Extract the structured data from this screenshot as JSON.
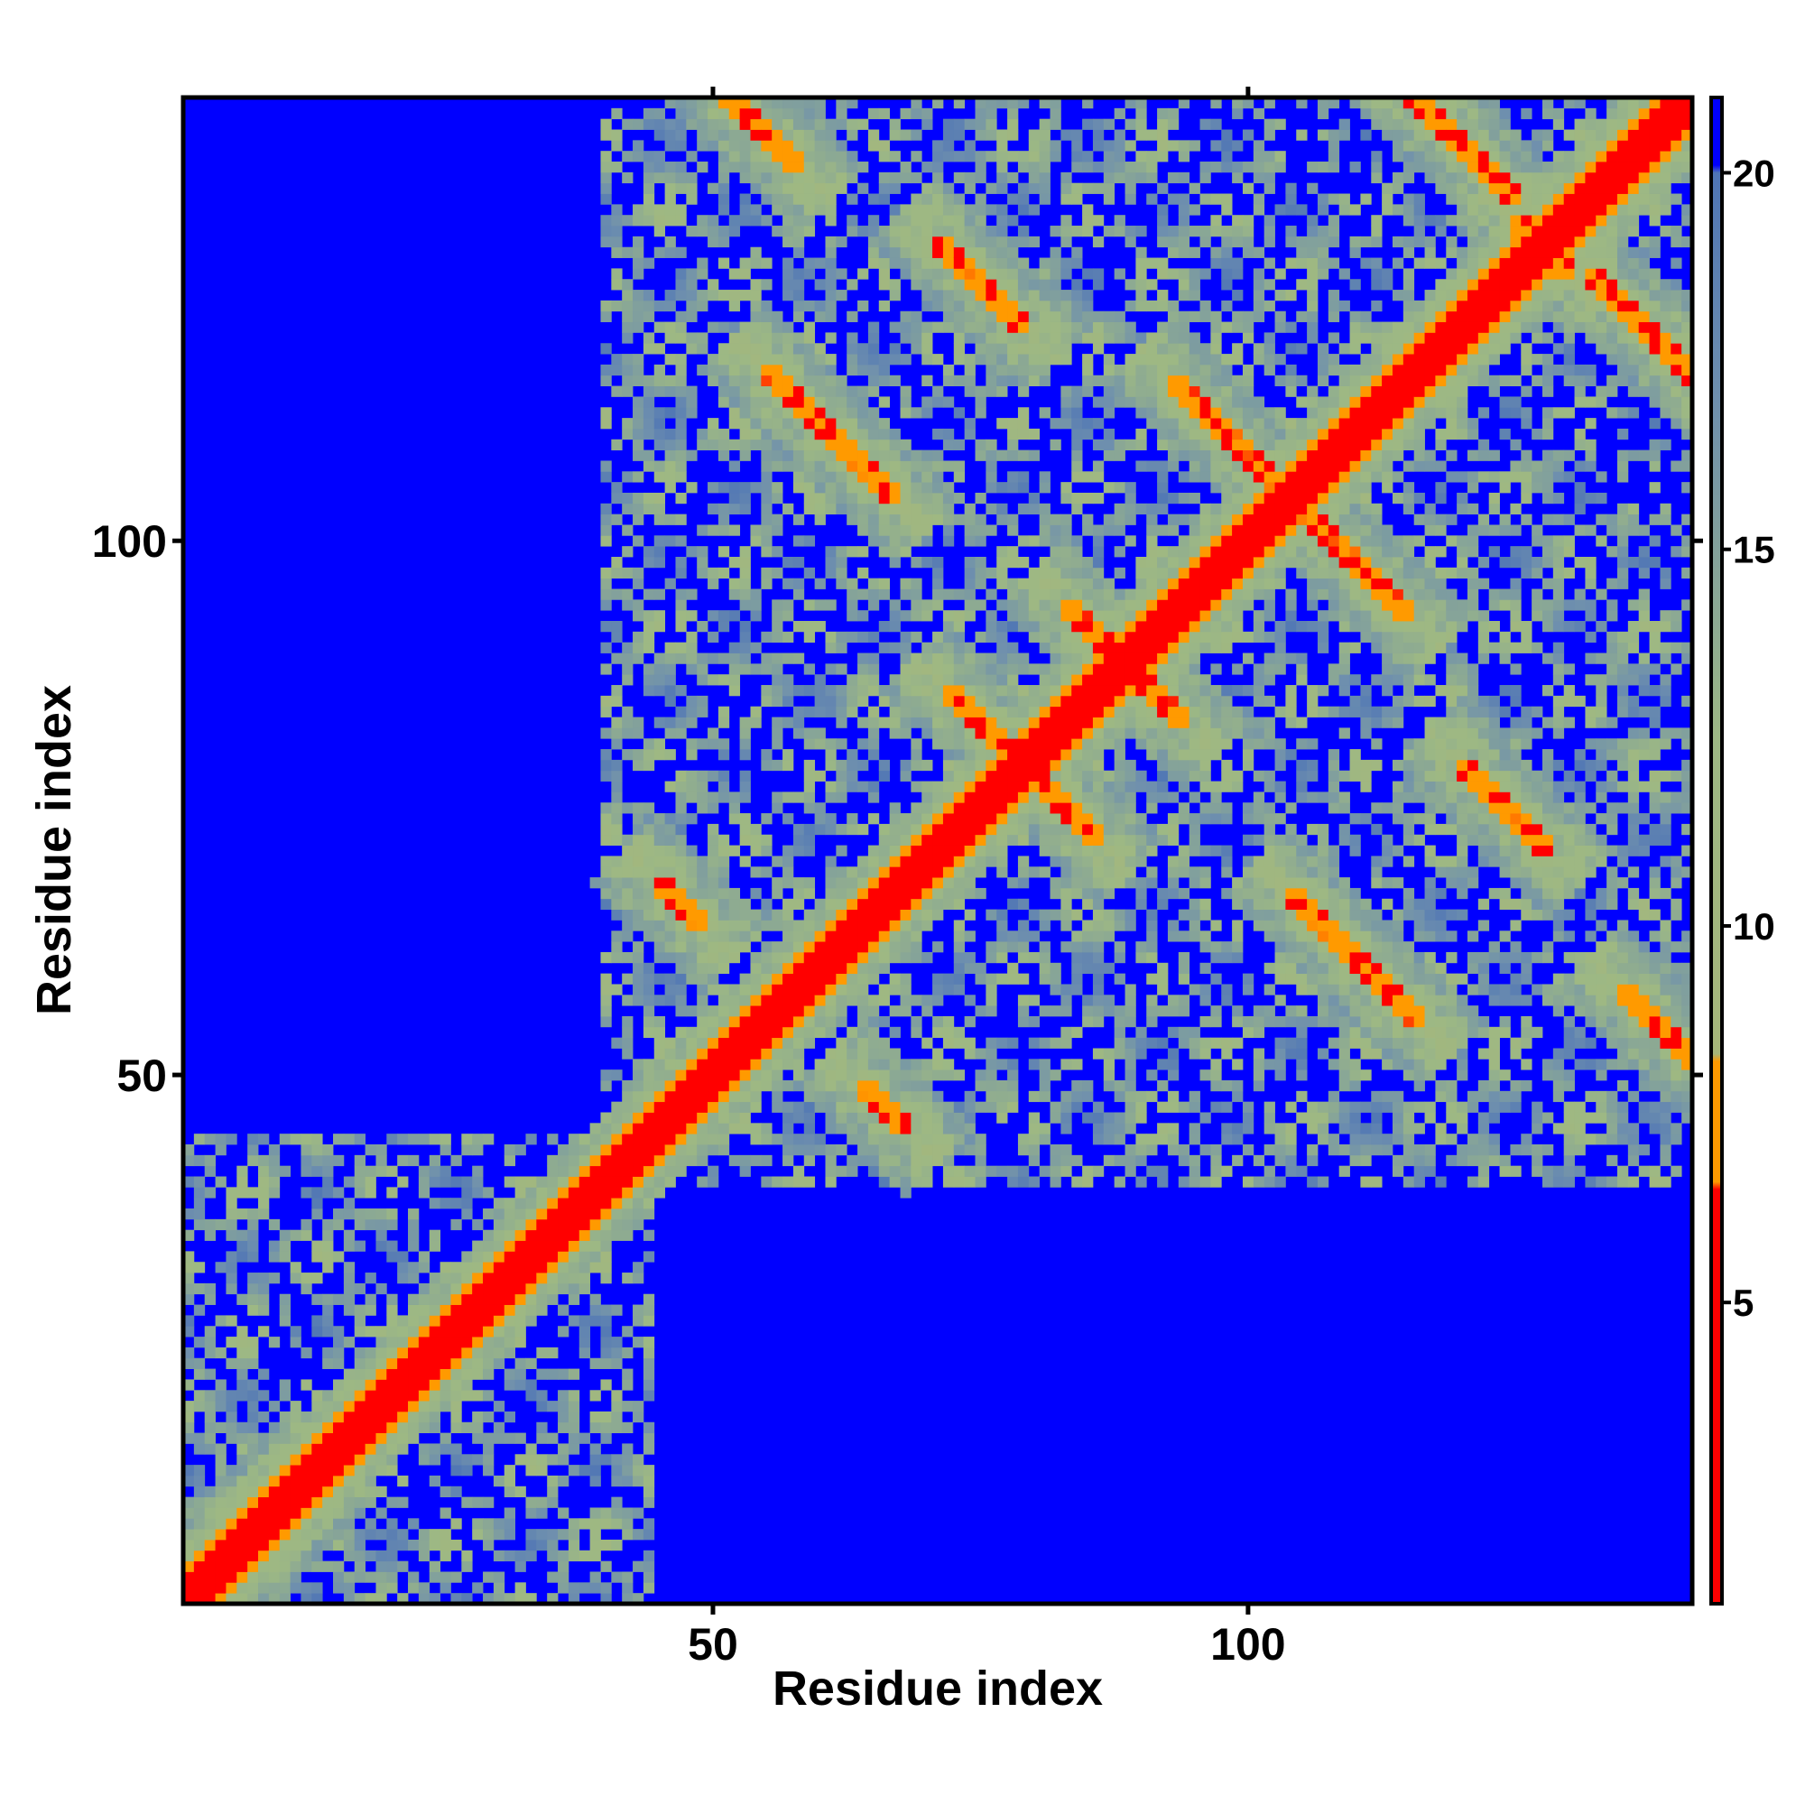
{
  "chart_data": {
    "type": "heatmap",
    "title": "",
    "xlabel": "Residue index",
    "ylabel": "Residue index",
    "n_residues": 141,
    "xlim": [
      1,
      141
    ],
    "ylim": [
      1,
      141
    ],
    "x_ticks": [
      50,
      100
    ],
    "y_ticks": [
      50,
      100
    ],
    "grid": false,
    "colorbar": {
      "placement": "right",
      "ticks": [
        5,
        10,
        15,
        20
      ],
      "range": [
        1,
        21
      ],
      "stops": [
        {
          "value": 1,
          "color": "#ff0000"
        },
        {
          "value": 6.5,
          "color": "#ff0000"
        },
        {
          "value": 6.6,
          "color": "#ff9a00"
        },
        {
          "value": 8.2,
          "color": "#ff9a00"
        },
        {
          "value": 8.3,
          "color": "#a6b67a"
        },
        {
          "value": 12.5,
          "color": "#9db884"
        },
        {
          "value": 17,
          "color": "#6e8fae"
        },
        {
          "value": 20,
          "color": "#4f75b5"
        },
        {
          "value": 20.1,
          "color": "#0000ff"
        },
        {
          "value": 21,
          "color": "#0000ff"
        }
      ]
    },
    "background_value": 21,
    "background_color": "#0000ff",
    "diagonal_value": 2,
    "contact_features": [
      {
        "kind": "antiparallel",
        "x_center": 54,
        "y_center": 139,
        "half_length": 4,
        "value": 6
      },
      {
        "kind": "antiparallel",
        "x_center": 75,
        "y_center": 124,
        "half_length": 4,
        "value": 6
      },
      {
        "kind": "antiparallel",
        "x_center": 61,
        "y_center": 110,
        "half_length": 6,
        "value": 6
      },
      {
        "kind": "antiparallel",
        "x_center": 98,
        "y_center": 110,
        "half_length": 5,
        "value": 6
      },
      {
        "kind": "antiparallel",
        "x_center": 111,
        "y_center": 97,
        "half_length": 5,
        "value": 6
      },
      {
        "kind": "antiparallel",
        "x_center": 120,
        "y_center": 137,
        "half_length": 5,
        "value": 6
      },
      {
        "kind": "antiparallel",
        "x_center": 130,
        "y_center": 125,
        "half_length": 5,
        "value": 6
      },
      {
        "kind": "antiparallel",
        "x_center": 124,
        "y_center": 76,
        "half_length": 4,
        "value": 6
      },
      {
        "kind": "antiparallel",
        "x_center": 109,
        "y_center": 62,
        "half_length": 5,
        "value": 6
      },
      {
        "kind": "antiparallel",
        "x_center": 75,
        "y_center": 83,
        "half_length": 3,
        "value": 6
      },
      {
        "kind": "antiparallel",
        "x_center": 84,
        "y_center": 73,
        "half_length": 3,
        "value": 6
      },
      {
        "kind": "antiparallel",
        "x_center": 86,
        "y_center": 91,
        "half_length": 3,
        "value": 6
      },
      {
        "kind": "antiparallel",
        "x_center": 91,
        "y_center": 85,
        "half_length": 2,
        "value": 6
      },
      {
        "kind": "antiparallel",
        "x_center": 65,
        "y_center": 48,
        "half_length": 2,
        "value": 6
      },
      {
        "kind": "antiparallel",
        "x_center": 47,
        "y_center": 66,
        "half_length": 2,
        "value": 6
      },
      {
        "kind": "parallel",
        "x_center": 138,
        "y_center": 52,
        "half_length": 3,
        "value": 6
      },
      {
        "kind": "parallel",
        "x_center": 31,
        "y_center": 30,
        "half_length": 4,
        "value": 6
      },
      {
        "kind": "parallel",
        "x_center": 7,
        "y_center": 9,
        "half_length": 2,
        "value": 6
      }
    ],
    "domains": [
      {
        "x_range": [
          40,
          141
        ],
        "y_range": [
          42,
          141
        ]
      },
      {
        "x_range": [
          1,
          42
        ],
        "y_range": [
          1,
          44
        ]
      }
    ]
  }
}
